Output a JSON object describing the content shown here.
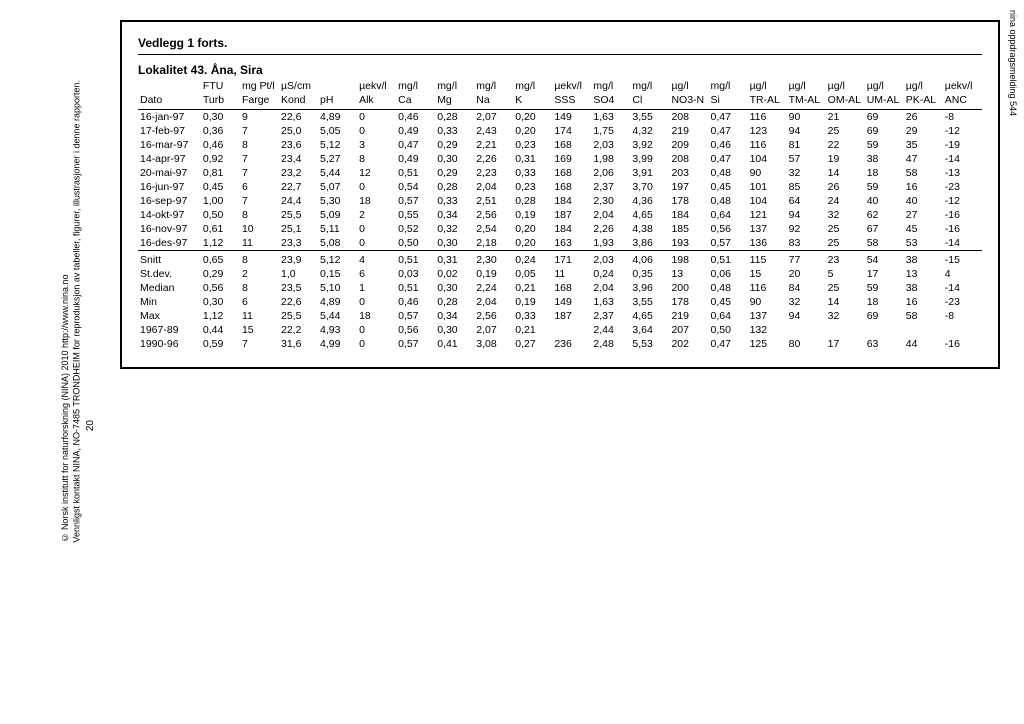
{
  "header": {
    "vedlegg": "Vedlegg 1 forts.",
    "lokalitet": "Lokalitet 43. Åna, Sira"
  },
  "margin": {
    "line1": "© Norsk institutt for naturforskning (NINA) 2010 http://www.nina.no",
    "line2": "Vennligst kontakt NINA, NO-7485 TRONDHEIM for reproduksjon av tabeller, figurer, illustrasjoner i denne rapporten.",
    "page_num": "20",
    "right": "nina oppdragsmelding 544"
  },
  "table": {
    "unit_row": [
      "",
      "FTU",
      "mg Pt/l",
      "µS/cm",
      "",
      "µekv/l",
      "mg/l",
      "mg/l",
      "mg/l",
      "mg/l",
      "µekv/l",
      "mg/l",
      "mg/l",
      "µg/l",
      "mg/l",
      "µg/l",
      "µg/l",
      "µg/l",
      "µg/l",
      "µg/l",
      "µekv/l"
    ],
    "label_row": [
      "Dato",
      "Turb",
      "Farge",
      "Kond",
      "pH",
      "Alk",
      "Ca",
      "Mg",
      "Na",
      "K",
      "SSS",
      "SO4",
      "Cl",
      "NO3-N",
      "Si",
      "TR-AL",
      "TM-AL",
      "OM-AL",
      "UM-AL",
      "PK-AL",
      "ANC"
    ],
    "data": [
      [
        "16-jan-97",
        "0,30",
        "9",
        "22,6",
        "4,89",
        "0",
        "0,46",
        "0,28",
        "2,07",
        "0,20",
        "149",
        "1,63",
        "3,55",
        "208",
        "0,47",
        "116",
        "90",
        "21",
        "69",
        "26",
        "-8"
      ],
      [
        "17-feb-97",
        "0,36",
        "7",
        "25,0",
        "5,05",
        "0",
        "0,49",
        "0,33",
        "2,43",
        "0,20",
        "174",
        "1,75",
        "4,32",
        "219",
        "0,47",
        "123",
        "94",
        "25",
        "69",
        "29",
        "-12"
      ],
      [
        "16-mar-97",
        "0,46",
        "8",
        "23,6",
        "5,12",
        "3",
        "0,47",
        "0,29",
        "2,21",
        "0,23",
        "168",
        "2,03",
        "3,92",
        "209",
        "0,46",
        "116",
        "81",
        "22",
        "59",
        "35",
        "-19"
      ],
      [
        "14-apr-97",
        "0,92",
        "7",
        "23,4",
        "5,27",
        "8",
        "0,49",
        "0,30",
        "2,26",
        "0,31",
        "169",
        "1,98",
        "3,99",
        "208",
        "0,47",
        "104",
        "57",
        "19",
        "38",
        "47",
        "-14"
      ],
      [
        "20-mai-97",
        "0,81",
        "7",
        "23,2",
        "5,44",
        "12",
        "0,51",
        "0,29",
        "2,23",
        "0,33",
        "168",
        "2,06",
        "3,91",
        "203",
        "0,48",
        "90",
        "32",
        "14",
        "18",
        "58",
        "-13"
      ],
      [
        "16-jun-97",
        "0,45",
        "6",
        "22,7",
        "5,07",
        "0",
        "0,54",
        "0,28",
        "2,04",
        "0,23",
        "168",
        "2,37",
        "3,70",
        "197",
        "0,45",
        "101",
        "85",
        "26",
        "59",
        "16",
        "-23"
      ],
      [
        "16-sep-97",
        "1,00",
        "7",
        "24,4",
        "5,30",
        "18",
        "0,57",
        "0,33",
        "2,51",
        "0,28",
        "184",
        "2,30",
        "4,36",
        "178",
        "0,48",
        "104",
        "64",
        "24",
        "40",
        "40",
        "-12"
      ],
      [
        "14-okt-97",
        "0,50",
        "8",
        "25,5",
        "5,09",
        "2",
        "0,55",
        "0,34",
        "2,56",
        "0,19",
        "187",
        "2,04",
        "4,65",
        "184",
        "0,64",
        "121",
        "94",
        "32",
        "62",
        "27",
        "-16"
      ],
      [
        "16-nov-97",
        "0,61",
        "10",
        "25,1",
        "5,11",
        "0",
        "0,52",
        "0,32",
        "2,54",
        "0,20",
        "184",
        "2,26",
        "4,38",
        "185",
        "0,56",
        "137",
        "92",
        "25",
        "67",
        "45",
        "-16"
      ],
      [
        "16-des-97",
        "1,12",
        "11",
        "23,3",
        "5,08",
        "0",
        "0,50",
        "0,30",
        "2,18",
        "0,20",
        "163",
        "1,93",
        "3,86",
        "193",
        "0,57",
        "136",
        "83",
        "25",
        "58",
        "53",
        "-14"
      ]
    ],
    "summary": [
      [
        "Snitt",
        "0,65",
        "8",
        "23,9",
        "5,12",
        "4",
        "0,51",
        "0,31",
        "2,30",
        "0,24",
        "171",
        "2,03",
        "4,06",
        "198",
        "0,51",
        "115",
        "77",
        "23",
        "54",
        "38",
        "-15"
      ],
      [
        "St.dev.",
        "0,29",
        "2",
        "1,0",
        "0,15",
        "6",
        "0,03",
        "0,02",
        "0,19",
        "0,05",
        "11",
        "0,24",
        "0,35",
        "13",
        "0,06",
        "15",
        "20",
        "5",
        "17",
        "13",
        "4"
      ],
      [
        "Median",
        "0,56",
        "8",
        "23,5",
        "5,10",
        "1",
        "0,51",
        "0,30",
        "2,24",
        "0,21",
        "168",
        "2,04",
        "3,96",
        "200",
        "0,48",
        "116",
        "84",
        "25",
        "59",
        "38",
        "-14"
      ],
      [
        "Min",
        "0,30",
        "6",
        "22,6",
        "4,89",
        "0",
        "0,46",
        "0,28",
        "2,04",
        "0,19",
        "149",
        "1,63",
        "3,55",
        "178",
        "0,45",
        "90",
        "32",
        "14",
        "18",
        "16",
        "-23"
      ],
      [
        "Max",
        "1,12",
        "11",
        "25,5",
        "5,44",
        "18",
        "0,57",
        "0,34",
        "2,56",
        "0,33",
        "187",
        "2,37",
        "4,65",
        "219",
        "0,64",
        "137",
        "94",
        "32",
        "69",
        "58",
        "-8"
      ],
      [
        "1967-89",
        "0,44",
        "15",
        "22,2",
        "4,93",
        "0",
        "0,56",
        "0,30",
        "2,07",
        "0,21",
        "",
        "2,44",
        "3,64",
        "207",
        "0,50",
        "132",
        "",
        "",
        "",
        "",
        ""
      ],
      [
        "1990-96",
        "0,59",
        "7",
        "31,6",
        "4,99",
        "0",
        "0,57",
        "0,41",
        "3,08",
        "0,27",
        "236",
        "2,48",
        "5,53",
        "202",
        "0,47",
        "125",
        "80",
        "17",
        "63",
        "44",
        "-16"
      ]
    ]
  }
}
